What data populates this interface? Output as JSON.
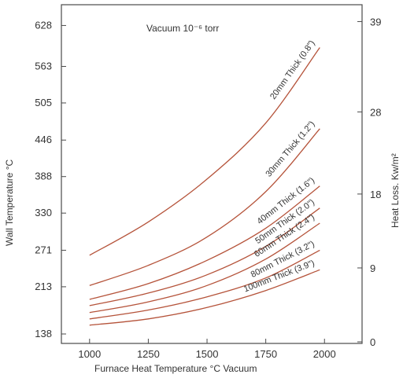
{
  "chart_data": {
    "type": "line",
    "annotation": "Vacuum  10⁻⁶ torr",
    "xlabel": "Furnace Heat Temperature °C Vacuum",
    "ylabel_left": "Wall Temperature °C",
    "ylabel_right": "Heat Loss. Kw/m²",
    "x_ticks": [
      "1000",
      "1250",
      "1500",
      "1750",
      "2000"
    ],
    "xlim": [
      880,
      2160
    ],
    "ylim_left": [
      123,
      661
    ],
    "y_ticks_left": [
      "138",
      "213",
      "271",
      "330",
      "388",
      "446",
      "505",
      "563",
      "628"
    ],
    "y_ticks_right": [
      "0",
      "9",
      "18",
      "28",
      "39"
    ],
    "grid": false,
    "line_color": "#b5533a",
    "series": [
      {
        "name": "20mm Thick (0.8\")",
        "x": [
          1000,
          1250,
          1500,
          1750,
          1980
        ],
        "y": [
          263,
          316,
          384,
          473,
          593
        ]
      },
      {
        "name": "30mm Thick (1.2\")",
        "x": [
          1000,
          1250,
          1500,
          1750,
          1980
        ],
        "y": [
          215,
          247,
          292,
          364,
          464
        ]
      },
      {
        "name": "40mm Thick (1.6\")",
        "x": [
          1000,
          1250,
          1500,
          1750,
          1980
        ],
        "y": [
          193,
          218,
          255,
          306,
          373
        ]
      },
      {
        "name": "50mm Thick (2.0\")",
        "x": [
          1000,
          1250,
          1500,
          1750,
          1980
        ],
        "y": [
          183,
          203,
          232,
          277,
          338
        ]
      },
      {
        "name": "60mm Thick (2.4\")",
        "x": [
          1000,
          1250,
          1500,
          1750,
          1980
        ],
        "y": [
          172,
          189,
          215,
          257,
          314
        ]
      },
      {
        "name": "80mm Thick (3.2\")",
        "x": [
          1000,
          1250,
          1500,
          1750,
          1980
        ],
        "y": [
          162,
          176,
          197,
          227,
          271
        ]
      },
      {
        "name": "100mm Thick (3.9\")",
        "x": [
          1000,
          1250,
          1500,
          1750,
          1980
        ],
        "y": [
          152,
          162,
          180,
          207,
          240
        ]
      }
    ]
  }
}
